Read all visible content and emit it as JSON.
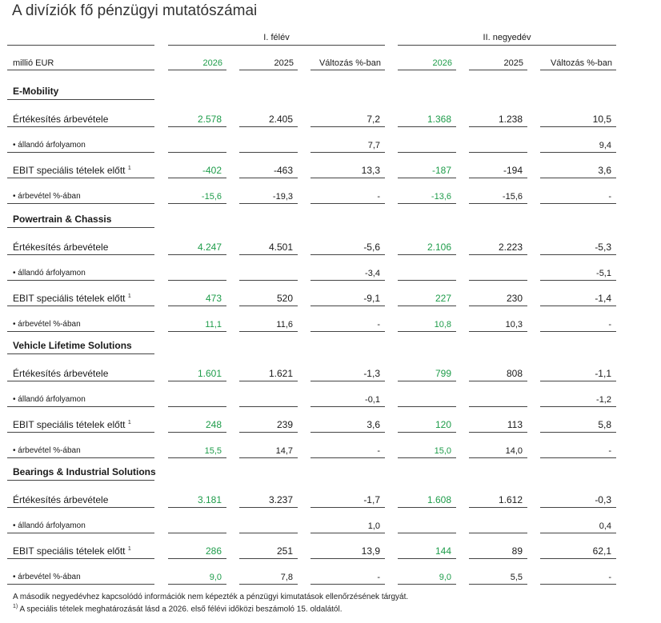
{
  "title": "A divíziók fő pénzügyi mutatószámai",
  "group_headers": [
    "I. félév",
    "II. negyedév"
  ],
  "unit_label": "millió EUR",
  "column_headers": [
    "2026",
    "2025",
    "Változás %-ban",
    "2026",
    "2025",
    "Változás %-ban"
  ],
  "sections": [
    {
      "name": "E-Mobility",
      "rows": [
        {
          "label": "Értékesítés árbevétele",
          "sup": "",
          "values": [
            "2.578",
            "2.405",
            "7,2",
            "1.368",
            "1.238",
            "10,5"
          ]
        },
        {
          "label": "• állandó árfolyamon",
          "sup": "",
          "values": [
            "",
            "",
            "7,7",
            "",
            "",
            "9,4"
          ]
        },
        {
          "label": "EBIT speciális tételek előtt",
          "sup": "1",
          "values": [
            "-402",
            "-463",
            "13,3",
            "-187",
            "-194",
            "3,6"
          ]
        },
        {
          "label": "• árbevétel %-ában",
          "sup": "",
          "values": [
            "-15,6",
            "-19,3",
            "-",
            "-13,6",
            "-15,6",
            "-"
          ]
        }
      ]
    },
    {
      "name": "Powertrain & Chassis",
      "rows": [
        {
          "label": "Értékesítés árbevétele",
          "sup": "",
          "values": [
            "4.247",
            "4.501",
            "-5,6",
            "2.106",
            "2.223",
            "-5,3"
          ]
        },
        {
          "label": "• állandó árfolyamon",
          "sup": "",
          "values": [
            "",
            "",
            "-3,4",
            "",
            "",
            "-5,1"
          ]
        },
        {
          "label": "EBIT speciális tételek előtt",
          "sup": "1",
          "values": [
            "473",
            "520",
            "-9,1",
            "227",
            "230",
            "-1,4"
          ]
        },
        {
          "label": "• árbevétel %-ában",
          "sup": "",
          "values": [
            "11,1",
            "11,6",
            "-",
            "10,8",
            "10,3",
            "-"
          ]
        }
      ]
    },
    {
      "name": "Vehicle Lifetime Solutions",
      "rows": [
        {
          "label": "Értékesítés árbevétele",
          "sup": "",
          "values": [
            "1.601",
            "1.621",
            "-1,3",
            "799",
            "808",
            "-1,1"
          ]
        },
        {
          "label": "• állandó árfolyamon",
          "sup": "",
          "values": [
            "",
            "",
            "-0,1",
            "",
            "",
            "-1,2"
          ]
        },
        {
          "label": "EBIT speciális tételek előtt",
          "sup": "1",
          "values": [
            "248",
            "239",
            "3,6",
            "120",
            "113",
            "5,8"
          ]
        },
        {
          "label": "• árbevétel %-ában",
          "sup": "",
          "values": [
            "15,5",
            "14,7",
            "-",
            "15,0",
            "14,0",
            "-"
          ]
        }
      ]
    },
    {
      "name": "Bearings & Industrial Solutions",
      "rows": [
        {
          "label": "Értékesítés árbevétele",
          "sup": "",
          "values": [
            "3.181",
            "3.237",
            "-1,7",
            "1.608",
            "1.612",
            "-0,3"
          ]
        },
        {
          "label": "• állandó árfolyamon",
          "sup": "",
          "values": [
            "",
            "",
            "1,0",
            "",
            "",
            "0,4"
          ]
        },
        {
          "label": "EBIT speciális tételek előtt",
          "sup": "1",
          "values": [
            "286",
            "251",
            "13,9",
            "144",
            "89",
            "62,1"
          ]
        },
        {
          "label": "• árbevétel %-ában",
          "sup": "",
          "values": [
            "9,0",
            "7,8",
            "-",
            "9,0",
            "5,5",
            "-"
          ]
        }
      ]
    }
  ],
  "footnotes": [
    {
      "sup": "",
      "text": "A második negyedévhez kapcsolódó információk nem képezték a pénzügyi kimutatások ellenőrzésének tárgyát."
    },
    {
      "sup": "1)",
      "text": " A speciális tételek meghatározását lásd a 2026. első félévi időközi beszámoló 15. oldalától."
    }
  ],
  "colors": {
    "highlight": "#1e9c4a",
    "text": "#1a1a1a",
    "rule": "#444444"
  }
}
